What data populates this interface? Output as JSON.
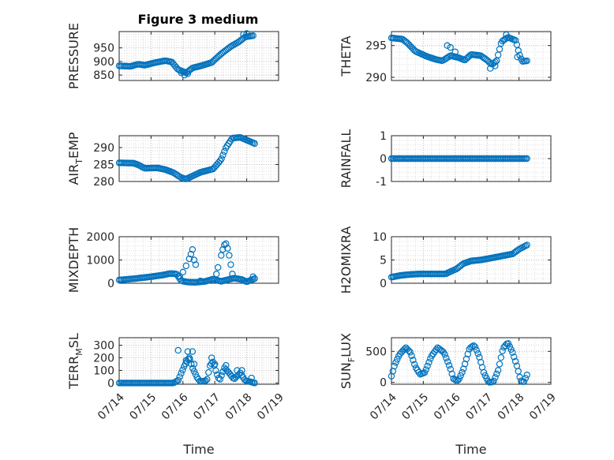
{
  "figure_title": "Figure 3 medium",
  "colors": {
    "marker": "#0072BD",
    "axis": "#262626",
    "grid": "#d0d0d0"
  },
  "chart_data": [
    {
      "id": "pressure",
      "type": "scatter",
      "title": "Figure 3 medium",
      "ylabel_parts": [
        "PRESSURE"
      ],
      "xlabel": "",
      "xlim": [
        0,
        5
      ],
      "ylim": [
        830,
        1010
      ],
      "yticks": [
        850,
        900,
        950
      ],
      "ytick_labels": [
        "850",
        "900",
        "950"
      ],
      "xtick_labels": [],
      "grid": "major+minor",
      "anchors": [
        [
          0.0,
          884
        ],
        [
          0.35,
          882
        ],
        [
          0.6,
          890
        ],
        [
          0.8,
          886
        ],
        [
          1.1,
          895
        ],
        [
          1.45,
          903
        ],
        [
          1.65,
          898
        ],
        [
          1.85,
          870
        ],
        [
          2.1,
          858
        ],
        [
          2.3,
          876
        ],
        [
          2.6,
          885
        ],
        [
          2.9,
          896
        ],
        [
          3.2,
          928
        ],
        [
          3.5,
          955
        ],
        [
          3.75,
          972
        ],
        [
          3.95,
          990
        ],
        [
          4.2,
          995
        ]
      ],
      "extra_points": [
        [
          1.95,
          858
        ],
        [
          2.05,
          850
        ],
        [
          2.15,
          855
        ],
        [
          3.9,
          1000
        ],
        [
          4.0,
          1003
        ]
      ]
    },
    {
      "id": "theta",
      "type": "scatter",
      "ylabel_parts": [
        "THETA"
      ],
      "xlabel": "",
      "xlim": [
        0,
        5
      ],
      "ylim": [
        289.5,
        297.2
      ],
      "yticks": [
        290,
        295
      ],
      "ytick_labels": [
        "290",
        "295"
      ],
      "xtick_labels": [],
      "grid": "major+minor",
      "anchors": [
        [
          0.0,
          296.2
        ],
        [
          0.35,
          296.0
        ],
        [
          0.5,
          295.4
        ],
        [
          0.75,
          294.1
        ],
        [
          1.1,
          293.3
        ],
        [
          1.4,
          292.8
        ],
        [
          1.6,
          292.6
        ],
        [
          1.85,
          293.4
        ],
        [
          2.1,
          293.1
        ],
        [
          2.3,
          292.7
        ],
        [
          2.5,
          293.6
        ],
        [
          2.8,
          293.4
        ],
        [
          3.0,
          292.7
        ],
        [
          3.15,
          292.0
        ],
        [
          3.3,
          292.6
        ],
        [
          3.45,
          295.6
        ],
        [
          3.65,
          296.3
        ],
        [
          3.9,
          295.8
        ],
        [
          4.0,
          293.8
        ],
        [
          4.1,
          292.5
        ],
        [
          4.25,
          292.6
        ]
      ],
      "extra_points": [
        [
          1.75,
          295.0
        ],
        [
          1.85,
          294.7
        ],
        [
          2.0,
          294.0
        ],
        [
          3.1,
          291.4
        ],
        [
          3.25,
          291.8
        ],
        [
          3.6,
          296.7
        ],
        [
          3.95,
          293.2
        ]
      ]
    },
    {
      "id": "air_temp",
      "type": "scatter",
      "ylabel_parts": [
        "AIR",
        "T",
        "EMP"
      ],
      "xlabel": "",
      "xlim": [
        0,
        5
      ],
      "ylim": [
        280,
        293.5
      ],
      "yticks": [
        280,
        285,
        290
      ],
      "ytick_labels": [
        "280",
        "285",
        "290"
      ],
      "xtick_labels": [],
      "grid": "major+minor",
      "anchors": [
        [
          0.0,
          285.5
        ],
        [
          0.45,
          285.4
        ],
        [
          0.6,
          284.9
        ],
        [
          0.8,
          283.9
        ],
        [
          1.2,
          284.0
        ],
        [
          1.45,
          283.5
        ],
        [
          1.7,
          282.6
        ],
        [
          1.95,
          281.1
        ],
        [
          2.1,
          280.7
        ],
        [
          2.3,
          281.6
        ],
        [
          2.55,
          282.7
        ],
        [
          2.95,
          283.7
        ],
        [
          3.2,
          286.5
        ],
        [
          3.35,
          290.0
        ],
        [
          3.55,
          292.8
        ],
        [
          3.8,
          293.0
        ],
        [
          4.25,
          291.2
        ]
      ],
      "extra_points": []
    },
    {
      "id": "rainfall",
      "type": "scatter",
      "ylabel_parts": [
        "RAINFALL"
      ],
      "xlabel": "",
      "xlim": [
        0,
        5
      ],
      "ylim": [
        -1,
        1
      ],
      "yticks": [
        -1,
        0,
        1
      ],
      "ytick_labels": [
        "-1",
        "0",
        "1"
      ],
      "xtick_labels": [],
      "grid": "major+minor",
      "anchors": [
        [
          0.0,
          0
        ],
        [
          4.25,
          0
        ]
      ],
      "extra_points": []
    },
    {
      "id": "mixdepth",
      "type": "scatter",
      "ylabel_parts": [
        "MIXDEPTH"
      ],
      "xlabel": "",
      "xlim": [
        0,
        5
      ],
      "ylim": [
        0,
        2000
      ],
      "yticks": [
        0,
        1000,
        2000
      ],
      "ytick_labels": [
        "0",
        "1000",
        "2000"
      ],
      "xtick_labels": [],
      "grid": "major+minor",
      "anchors": [
        [
          0.0,
          140
        ],
        [
          0.5,
          200
        ],
        [
          1.0,
          280
        ],
        [
          1.4,
          360
        ],
        [
          1.6,
          420
        ],
        [
          1.8,
          400
        ],
        [
          1.95,
          100
        ],
        [
          2.15,
          50
        ],
        [
          2.4,
          40
        ],
        [
          2.7,
          80
        ],
        [
          2.95,
          180
        ],
        [
          3.2,
          80
        ],
        [
          3.6,
          220
        ],
        [
          3.85,
          160
        ],
        [
          4.0,
          60
        ],
        [
          4.25,
          200
        ]
      ],
      "extra_points": [
        [
          1.9,
          300
        ],
        [
          2.0,
          480
        ],
        [
          2.1,
          750
        ],
        [
          2.2,
          1050
        ],
        [
          2.25,
          1250
        ],
        [
          2.3,
          1450
        ],
        [
          2.35,
          1000
        ],
        [
          2.4,
          800
        ],
        [
          2.55,
          100
        ],
        [
          3.05,
          400
        ],
        [
          3.1,
          680
        ],
        [
          3.2,
          1200
        ],
        [
          3.25,
          1450
        ],
        [
          3.3,
          1650
        ],
        [
          3.35,
          1700
        ],
        [
          3.4,
          1500
        ],
        [
          3.45,
          1200
        ],
        [
          3.5,
          800
        ],
        [
          3.55,
          400
        ],
        [
          4.2,
          280
        ]
      ]
    },
    {
      "id": "h2omixra",
      "type": "scatter",
      "ylabel_parts": [
        "H2OMIXRA"
      ],
      "xlabel": "",
      "xlim": [
        0,
        5
      ],
      "ylim": [
        0,
        10
      ],
      "yticks": [
        0,
        5,
        10
      ],
      "ytick_labels": [
        "0",
        "5",
        "10"
      ],
      "xtick_labels": [],
      "grid": "major+minor",
      "anchors": [
        [
          0.0,
          1.3
        ],
        [
          0.3,
          1.7
        ],
        [
          0.6,
          1.9
        ],
        [
          0.9,
          2.0
        ],
        [
          1.3,
          2.0
        ],
        [
          1.7,
          2.0
        ],
        [
          1.85,
          2.5
        ],
        [
          2.05,
          3.1
        ],
        [
          2.25,
          4.2
        ],
        [
          2.5,
          4.8
        ],
        [
          2.8,
          5.0
        ],
        [
          3.2,
          5.5
        ],
        [
          3.5,
          5.9
        ],
        [
          3.8,
          6.3
        ],
        [
          4.0,
          7.3
        ],
        [
          4.25,
          8.2
        ]
      ],
      "extra_points": []
    },
    {
      "id": "terr_msl",
      "type": "scatter",
      "ylabel_parts": [
        "TERR",
        "M",
        "SL"
      ],
      "xlabel": "Time",
      "xlim": [
        0,
        5
      ],
      "ylim": [
        -10,
        360
      ],
      "yticks": [
        0,
        100,
        200,
        300
      ],
      "ytick_labels": [
        "0",
        "100",
        "200",
        "300"
      ],
      "xtick_labels": [
        "07/14",
        "07/15",
        "07/16",
        "07/17",
        "07/18",
        "07/19"
      ],
      "grid": "major+minor",
      "anchors": [
        [
          0.0,
          0
        ],
        [
          1.0,
          0
        ],
        [
          1.7,
          0
        ],
        [
          1.85,
          20
        ],
        [
          1.95,
          80
        ],
        [
          2.05,
          140
        ],
        [
          2.2,
          200
        ],
        [
          2.3,
          120
        ],
        [
          2.45,
          40
        ],
        [
          2.55,
          10
        ],
        [
          2.75,
          20
        ],
        [
          2.85,
          140
        ],
        [
          2.95,
          170
        ],
        [
          3.05,
          80
        ],
        [
          3.15,
          20
        ],
        [
          3.3,
          120
        ],
        [
          3.45,
          80
        ],
        [
          3.6,
          30
        ],
        [
          3.8,
          80
        ],
        [
          3.95,
          20
        ],
        [
          4.1,
          10
        ],
        [
          4.25,
          0
        ]
      ],
      "extra_points": [
        [
          1.85,
          260
        ],
        [
          2.1,
          180
        ],
        [
          2.15,
          250
        ],
        [
          2.2,
          200
        ],
        [
          2.25,
          370
        ],
        [
          2.3,
          250
        ],
        [
          2.35,
          150
        ],
        [
          2.9,
          200
        ],
        [
          3.0,
          150
        ],
        [
          3.35,
          140
        ],
        [
          3.7,
          100
        ],
        [
          3.85,
          100
        ],
        [
          4.15,
          40
        ]
      ]
    },
    {
      "id": "sun_flux",
      "type": "scatter",
      "ylabel_parts": [
        "SUN",
        "F",
        "LUX"
      ],
      "xlabel": "Time",
      "xlim": [
        0,
        5
      ],
      "ylim": [
        -30,
        720
      ],
      "yticks": [
        0,
        500
      ],
      "ytick_labels": [
        "0",
        "500"
      ],
      "xtick_labels": [
        "07/14",
        "07/15",
        "07/16",
        "07/17",
        "07/18",
        "07/19"
      ],
      "grid": "major+minor",
      "anchors": [
        [
          0.0,
          100
        ],
        [
          0.1,
          280
        ],
        [
          0.25,
          450
        ],
        [
          0.45,
          560
        ],
        [
          0.6,
          480
        ],
        [
          0.75,
          250
        ],
        [
          0.9,
          130
        ],
        [
          1.05,
          160
        ],
        [
          1.25,
          420
        ],
        [
          1.45,
          560
        ],
        [
          1.65,
          480
        ],
        [
          1.85,
          220
        ],
        [
          1.95,
          50
        ],
        [
          2.1,
          30
        ],
        [
          2.25,
          200
        ],
        [
          2.45,
          550
        ],
        [
          2.6,
          600
        ],
        [
          2.75,
          420
        ],
        [
          2.9,
          150
        ],
        [
          3.05,
          0
        ],
        [
          3.2,
          10
        ],
        [
          3.35,
          200
        ],
        [
          3.5,
          550
        ],
        [
          3.65,
          640
        ],
        [
          3.8,
          480
        ],
        [
          3.95,
          240
        ],
        [
          4.05,
          30
        ],
        [
          4.15,
          0
        ],
        [
          4.25,
          120
        ]
      ],
      "extra_points": []
    }
  ]
}
